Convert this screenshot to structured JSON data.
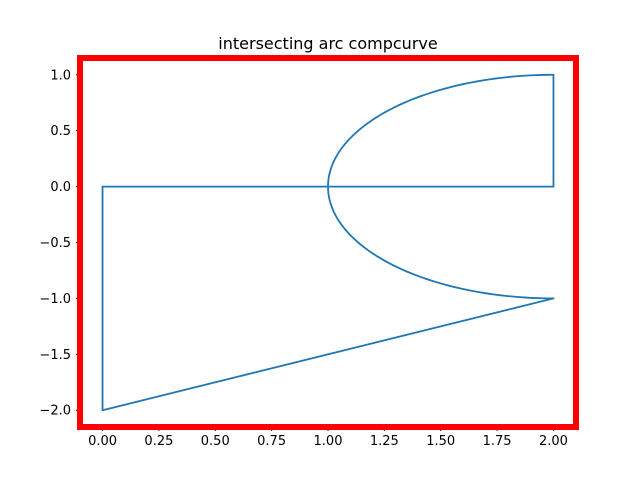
{
  "chart_data": {
    "type": "line",
    "title": "intersecting arc compcurve",
    "xlabel": "",
    "ylabel": "",
    "xlim": [
      -0.1,
      2.1
    ],
    "ylim": [
      -2.15,
      1.15
    ],
    "xticks": [
      0.0,
      0.25,
      0.5,
      0.75,
      1.0,
      1.25,
      1.5,
      1.75,
      2.0
    ],
    "xtick_labels": [
      "0.00",
      "0.25",
      "0.50",
      "0.75",
      "1.00",
      "1.25",
      "1.50",
      "1.75",
      "2.00"
    ],
    "yticks": [
      -2.0,
      -1.5,
      -1.0,
      -0.5,
      0.0,
      0.5,
      1.0
    ],
    "ytick_labels": [
      "−2.0",
      "−1.5",
      "−1.0",
      "−0.5",
      "0.0",
      "0.5",
      "1.0"
    ],
    "grid": false,
    "legend": "none",
    "series": [
      {
        "segments": [
          {
            "kind": "line",
            "points": [
              [
                0,
                0
              ],
              [
                2,
                0
              ]
            ]
          },
          {
            "kind": "line",
            "points": [
              [
                2,
                0
              ],
              [
                2,
                1
              ]
            ]
          },
          {
            "kind": "arc",
            "center": [
              2,
              0
            ],
            "rx": 1,
            "ry": 1,
            "start_deg": 90,
            "end_deg": 270
          },
          {
            "kind": "line",
            "points": [
              [
                2,
                -1
              ],
              [
                0,
                -2
              ]
            ]
          },
          {
            "kind": "line",
            "points": [
              [
                0,
                -2
              ],
              [
                0,
                0
              ]
            ]
          }
        ]
      }
    ],
    "colors": {
      "series": "#1f77b4",
      "frame": "#ff0000"
    }
  }
}
